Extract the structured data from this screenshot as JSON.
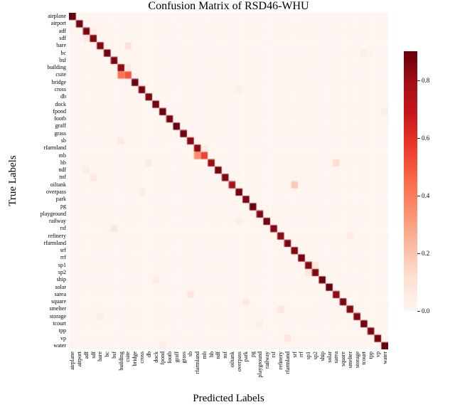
{
  "figure": {
    "title": "Confusion Matrix of RSD46-WHU",
    "xlabel": "Predicted Labels",
    "ylabel": "True Labels"
  },
  "chart_data": {
    "type": "heatmap",
    "title": "Confusion Matrix of RSD46-WHU",
    "xlabel": "Predicted Labels",
    "ylabel": "True Labels",
    "x_tick_labels": [
      "airplane",
      "airport",
      "adf",
      "sdf",
      "bare",
      "bc",
      "bsf",
      "building",
      "csite",
      "bridge",
      "cross",
      "db",
      "dock",
      "fpond",
      "footb",
      "graff",
      "grass",
      "sb",
      "rfarmland",
      "mb",
      "hb",
      "ndf",
      "nsf",
      "oiltank",
      "overpass",
      "park",
      "pg",
      "playground",
      "railway",
      "rsf",
      "refinery",
      "rfarmland",
      "srf",
      "rrf",
      "sp1",
      "sp2",
      "ship",
      "solar",
      "sarea",
      "square",
      "smelter",
      "storage",
      "tcourt",
      "tpp",
      "vp",
      "water"
    ],
    "y_tick_labels": [
      "airplane",
      "airport",
      "adf",
      "sdf",
      "bare",
      "bc",
      "bsf",
      "building",
      "csite",
      "bridge",
      "cross",
      "db",
      "dock",
      "fpond",
      "footb",
      "graff",
      "grass",
      "sb",
      "rfarmland",
      "mb",
      "hb",
      "ndf",
      "nsf",
      "oiltank",
      "overpass",
      "park",
      "pg",
      "playground",
      "railway",
      "rsf",
      "refinery",
      "rfarmland",
      "srf",
      "rrf",
      "sp1",
      "sp2",
      "ship",
      "solar",
      "sarea",
      "square",
      "smelter",
      "storage",
      "tcourt",
      "tpp",
      "vp",
      "water"
    ],
    "colormap": "Reds",
    "colormap_stops": [
      "#fff5f0",
      "#fee0d2",
      "#fcbba1",
      "#fc9272",
      "#fb6a4a",
      "#ef3b2c",
      "#cb181d",
      "#a50f15",
      "#67000d"
    ],
    "vmin": 0.0,
    "vmax": 0.9,
    "default_value": 0.0,
    "colorbar_ticks": [
      0.8,
      0.6,
      0.4,
      0.2,
      0.0
    ],
    "diagonal": [
      0.9,
      0.88,
      0.87,
      0.85,
      0.84,
      0.88,
      0.86,
      0.82,
      0.5,
      0.89,
      0.87,
      0.86,
      0.88,
      0.89,
      0.87,
      0.9,
      0.88,
      0.84,
      0.83,
      0.55,
      0.8,
      0.87,
      0.85,
      0.78,
      0.88,
      0.86,
      0.89,
      0.85,
      0.88,
      0.84,
      0.83,
      0.86,
      0.85,
      0.87,
      0.84,
      0.85,
      0.89,
      0.9,
      0.82,
      0.86,
      0.84,
      0.85,
      0.88,
      0.86,
      0.87,
      0.9
    ],
    "off_diagonal": [
      {
        "row": 8,
        "col": 7,
        "row_label": "csite",
        "col_label": "building",
        "value": 0.42
      },
      {
        "row": 7,
        "col": 8,
        "row_label": "building",
        "col_label": "csite",
        "value": 0.06
      },
      {
        "row": 4,
        "col": 8,
        "row_label": "bare",
        "col_label": "csite",
        "value": 0.1
      },
      {
        "row": 2,
        "col": 3,
        "row_label": "adf",
        "col_label": "sdf",
        "value": 0.05
      },
      {
        "row": 3,
        "col": 2,
        "row_label": "sdf",
        "col_label": "adf",
        "value": 0.06
      },
      {
        "row": 19,
        "col": 18,
        "row_label": "mb",
        "col_label": "rfarmland",
        "value": 0.35
      },
      {
        "row": 18,
        "col": 19,
        "row_label": "rfarmland",
        "col_label": "mb",
        "value": 0.05
      },
      {
        "row": 20,
        "col": 38,
        "row_label": "hb",
        "col_label": "sarea",
        "value": 0.12
      },
      {
        "row": 20,
        "col": 11,
        "row_label": "hb",
        "col_label": "db",
        "value": 0.06
      },
      {
        "row": 23,
        "col": 32,
        "row_label": "oiltank",
        "col_label": "srf",
        "value": 0.18
      },
      {
        "row": 21,
        "col": 2,
        "row_label": "ndf",
        "col_label": "adf",
        "value": 0.05
      },
      {
        "row": 22,
        "col": 3,
        "row_label": "nsf",
        "col_label": "sdf",
        "value": 0.06
      },
      {
        "row": 10,
        "col": 24,
        "row_label": "cross",
        "col_label": "overpass",
        "value": 0.04
      },
      {
        "row": 24,
        "col": 10,
        "row_label": "overpass",
        "col_label": "cross",
        "value": 0.05
      },
      {
        "row": 34,
        "col": 35,
        "row_label": "sp1",
        "col_label": "sp2",
        "value": 0.08
      },
      {
        "row": 35,
        "col": 34,
        "row_label": "sp2",
        "col_label": "sp1",
        "value": 0.07
      },
      {
        "row": 36,
        "col": 12,
        "row_label": "ship",
        "col_label": "dock",
        "value": 0.05
      },
      {
        "row": 38,
        "col": 17,
        "row_label": "sarea",
        "col_label": "sb",
        "value": 0.08
      },
      {
        "row": 39,
        "col": 25,
        "row_label": "square",
        "col_label": "park",
        "value": 0.06
      },
      {
        "row": 40,
        "col": 30,
        "row_label": "smelter",
        "col_label": "refinery",
        "value": 0.07
      },
      {
        "row": 30,
        "col": 40,
        "row_label": "refinery",
        "col_label": "smelter",
        "value": 0.06
      },
      {
        "row": 41,
        "col": 4,
        "row_label": "storage",
        "col_label": "bare",
        "value": 0.05
      },
      {
        "row": 42,
        "col": 27,
        "row_label": "tcourt",
        "col_label": "playground",
        "value": 0.05
      },
      {
        "row": 44,
        "col": 31,
        "row_label": "vp",
        "col_label": "rfarmland",
        "value": 0.08
      },
      {
        "row": 45,
        "col": 13,
        "row_label": "water",
        "col_label": "fpond",
        "value": 0.04
      },
      {
        "row": 29,
        "col": 6,
        "row_label": "rsf",
        "col_label": "bsf",
        "value": 0.08
      },
      {
        "row": 5,
        "col": 42,
        "row_label": "bc",
        "col_label": "tcourt",
        "value": 0.05
      },
      {
        "row": 13,
        "col": 45,
        "row_label": "fpond",
        "col_label": "water",
        "value": 0.04
      },
      {
        "row": 17,
        "col": 7,
        "row_label": "sb",
        "col_label": "building",
        "value": 0.06
      },
      {
        "row": 28,
        "col": 24,
        "row_label": "railway",
        "col_label": "overpass",
        "value": 0.04
      }
    ]
  }
}
